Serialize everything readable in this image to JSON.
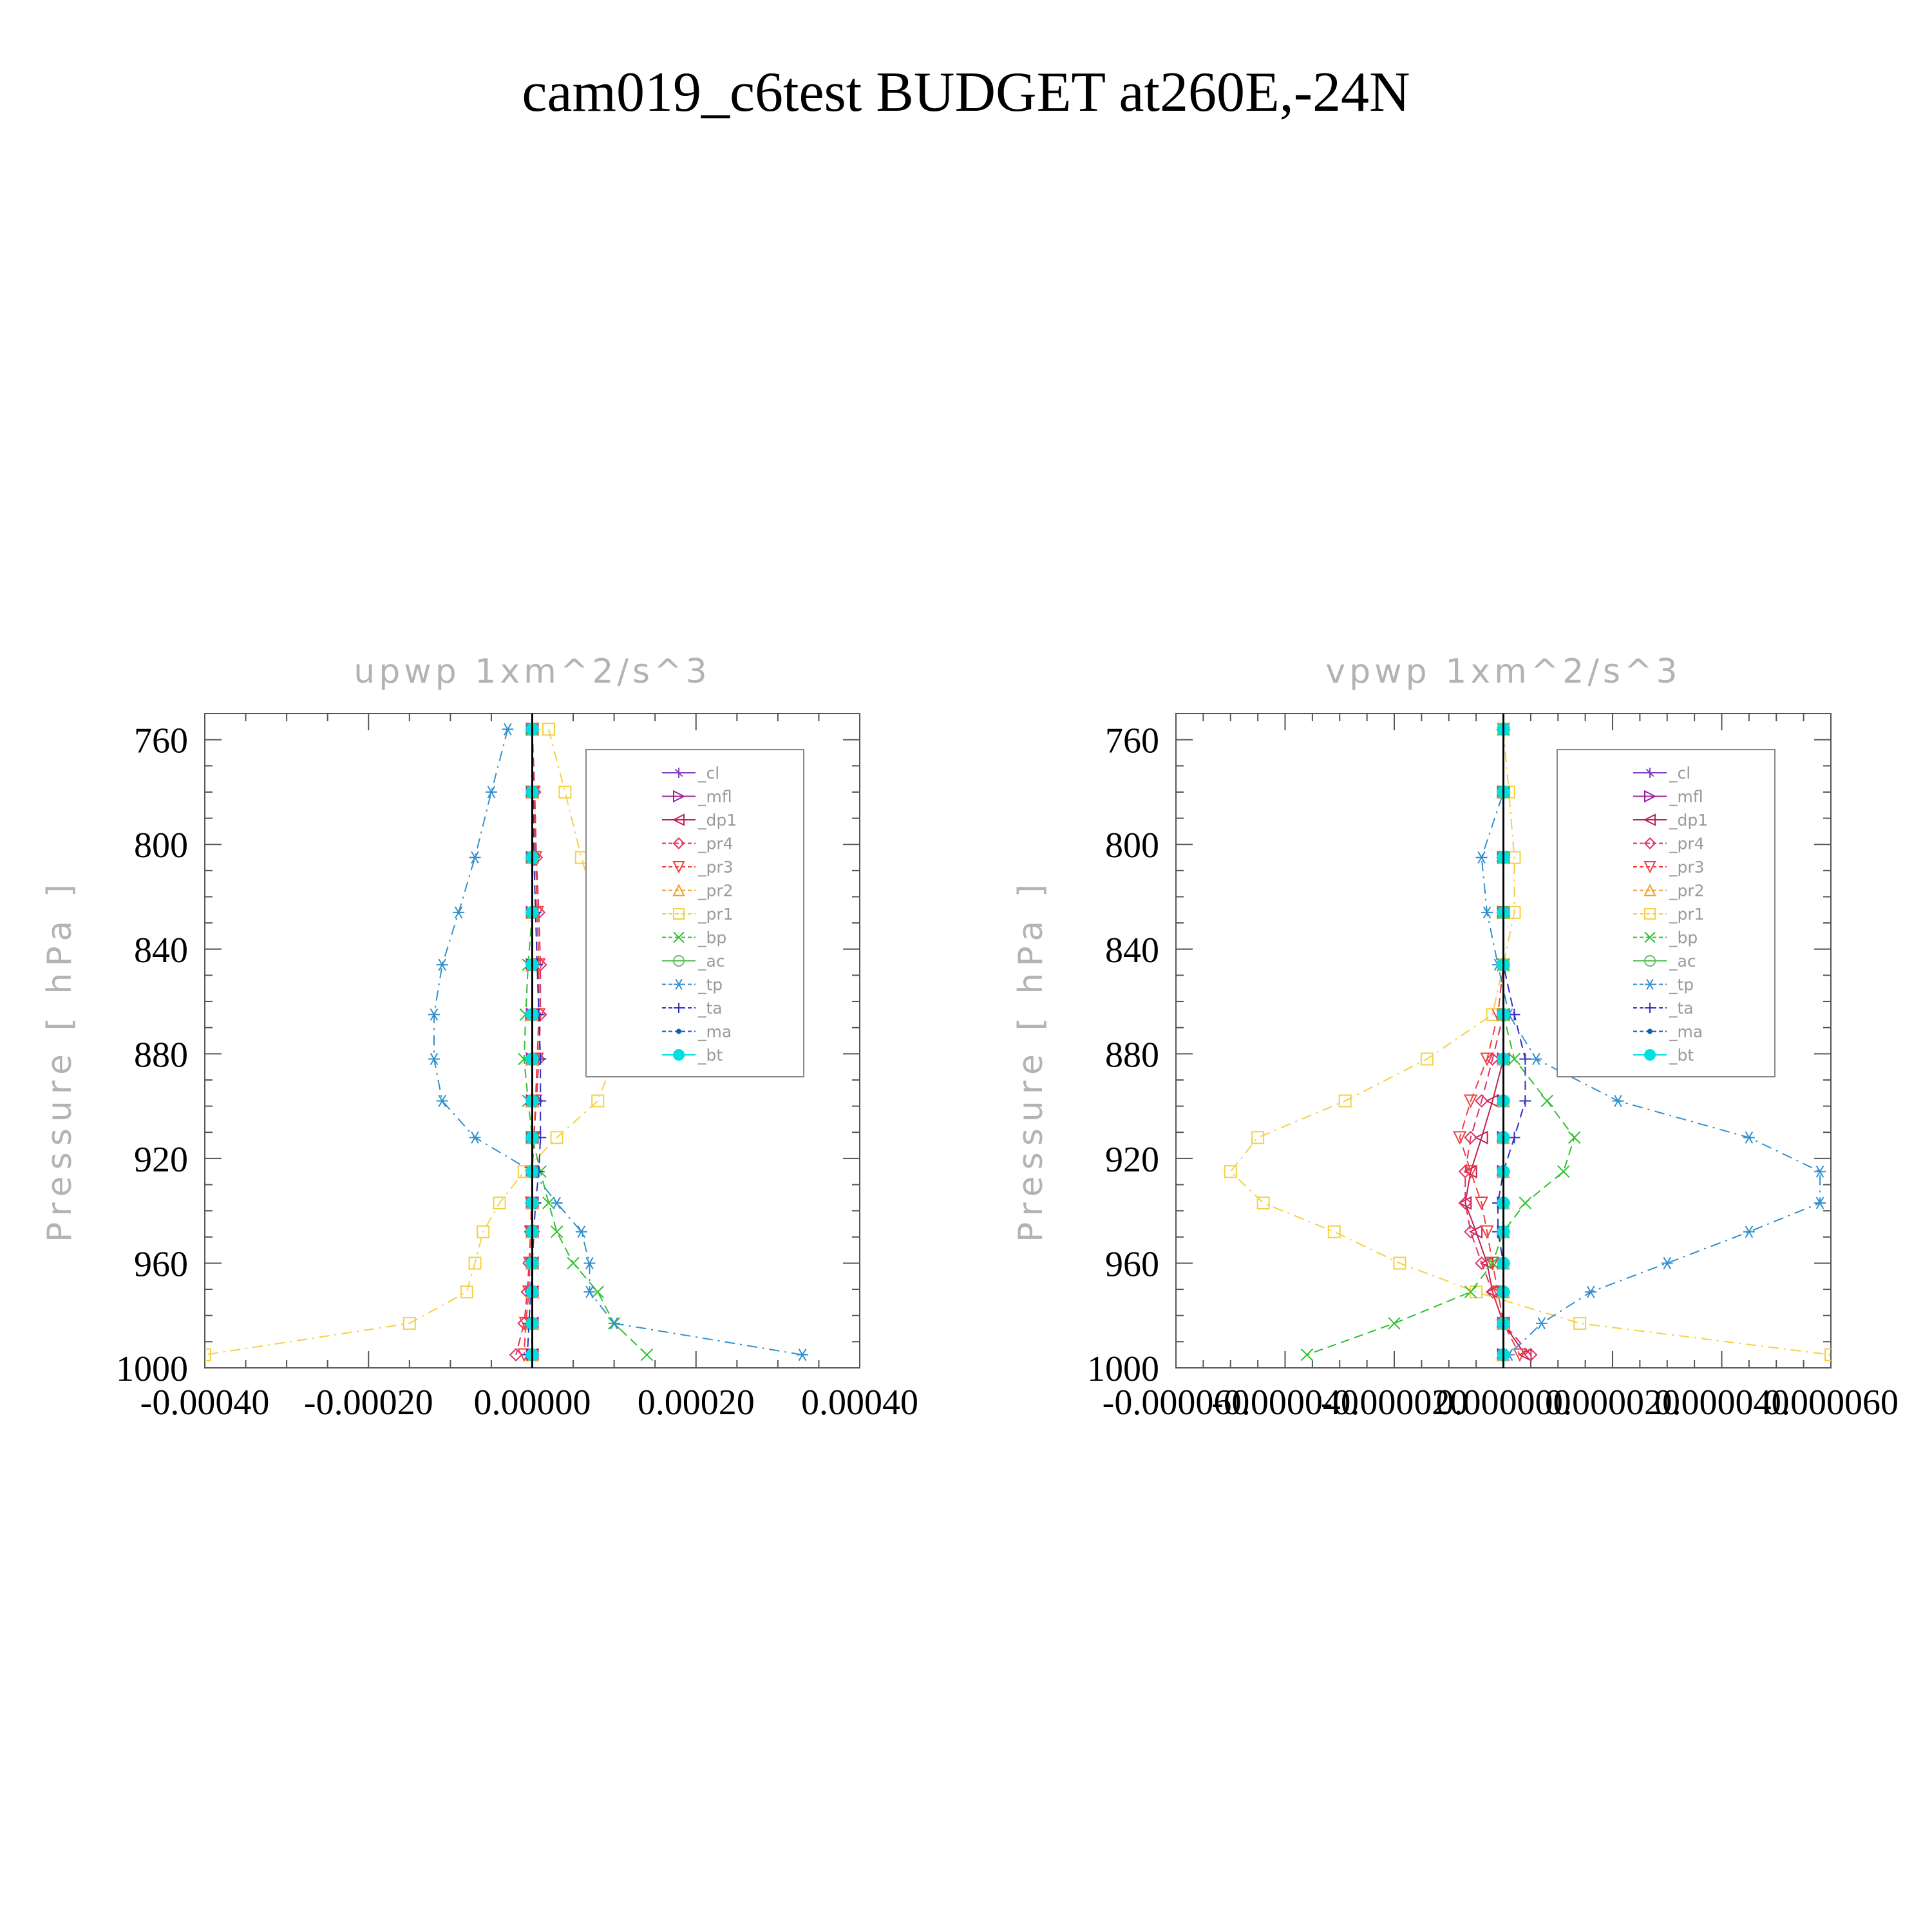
{
  "title": "cam019_c6test  BUDGET at260E,-24N",
  "chart_data": [
    {
      "type": "line",
      "title": "upwp    1xm^2/s^3",
      "ylabel": "Pressure  [ hPa ]",
      "xlabel": "",
      "xlim": [
        -0.0004,
        0.0004
      ],
      "ylim": [
        1000,
        750
      ],
      "x_ticks": [
        "-0.00040",
        "-0.00020",
        "0.00000",
        "0.00020",
        "0.00040"
      ],
      "x_tick_values": [
        -0.0004,
        -0.0002,
        0.0,
        0.0002,
        0.0004
      ],
      "y_ticks": [
        "760",
        "800",
        "840",
        "880",
        "920",
        "960",
        "1000"
      ],
      "y_tick_values": [
        760,
        800,
        840,
        880,
        920,
        960,
        1000
      ],
      "levels": [
        756,
        780,
        805,
        826,
        846,
        865,
        882,
        898,
        912,
        925,
        937,
        948,
        960,
        971,
        983,
        995
      ],
      "series": [
        {
          "name": "_cl",
          "color": "#8040c0",
          "marker": "star",
          "dash": "solid",
          "values": [
            0,
            0,
            0,
            0,
            0,
            0,
            0,
            0,
            0,
            0,
            0,
            0,
            0,
            0,
            0,
            0
          ]
        },
        {
          "name": "_mfl",
          "color": "#a020a0",
          "marker": "tri-right",
          "dash": "solid",
          "values": [
            0,
            0,
            0,
            0,
            0,
            0,
            0,
            0,
            0,
            0,
            0,
            0,
            0,
            0,
            0,
            0
          ]
        },
        {
          "name": "_dp1",
          "color": "#c02050",
          "marker": "tri-left",
          "dash": "solid",
          "values": [
            0,
            0,
            0,
            0,
            0,
            0,
            0,
            0,
            0,
            0,
            0,
            0,
            0,
            0,
            0,
            0
          ]
        },
        {
          "name": "_pr4",
          "color": "#e03060",
          "marker": "diamond",
          "dash": "dashed",
          "values": [
            0,
            3e-06,
            5e-06,
            8e-06,
            1e-05,
            1e-05,
            8e-06,
            5e-06,
            2e-06,
            0,
            -1e-06,
            -2e-06,
            -4e-06,
            -6e-06,
            -1e-05,
            -2e-05
          ]
        },
        {
          "name": "_pr3",
          "color": "#f04040",
          "marker": "tri-down",
          "dash": "dashed",
          "values": [
            0,
            2e-06,
            4e-06,
            6e-06,
            8e-06,
            8e-06,
            6e-06,
            4e-06,
            2e-06,
            0,
            -1e-06,
            -2e-06,
            -3e-06,
            -4e-06,
            -8e-06,
            -1e-05
          ]
        },
        {
          "name": "_pr2",
          "color": "#f0a030",
          "marker": "tri-up",
          "dash": "dashed",
          "values": [
            0,
            0,
            0,
            0,
            0,
            0,
            0,
            0,
            0,
            0,
            0,
            0,
            0,
            0,
            0,
            0
          ]
        },
        {
          "name": "_pr1",
          "color": "#f5d040",
          "marker": "square",
          "dash": "dashdot",
          "values": [
            2e-05,
            4e-05,
            6e-05,
            8e-05,
            9e-05,
            0.0001,
            0.0001,
            8e-05,
            3e-05,
            -1e-05,
            -4e-05,
            -6e-05,
            -7e-05,
            -8e-05,
            -0.00015,
            -0.0004
          ]
        },
        {
          "name": "_bp",
          "color": "#30c030",
          "marker": "x",
          "dash": "dashed",
          "values": [
            0,
            0,
            0,
            0,
            -5e-06,
            -8e-06,
            -1e-05,
            -5e-06,
            0,
            1e-05,
            2e-05,
            3e-05,
            5e-05,
            8e-05,
            0.0001,
            0.00014
          ]
        },
        {
          "name": "_ac",
          "color": "#60c060",
          "marker": "circle",
          "dash": "solid",
          "values": [
            0,
            0,
            0,
            0,
            0,
            0,
            0,
            0,
            0,
            0,
            0,
            0,
            0,
            0,
            0,
            0
          ]
        },
        {
          "name": "_tp",
          "color": "#3090d0",
          "marker": "asterisk",
          "dash": "dashdot",
          "values": [
            -3e-05,
            -5e-05,
            -7e-05,
            -9e-05,
            -0.00011,
            -0.00012,
            -0.00012,
            -0.00011,
            -7e-05,
            0,
            3e-05,
            6e-05,
            7e-05,
            7e-05,
            0.0001,
            0.00033
          ]
        },
        {
          "name": "_ta",
          "color": "#3030c0",
          "marker": "plus",
          "dash": "dashed",
          "values": [
            0,
            1e-06,
            2e-06,
            4e-06,
            6e-06,
            8e-06,
            1e-05,
            1e-05,
            1e-05,
            8e-06,
            4e-06,
            2e-06,
            0,
            -2e-06,
            -4e-06,
            -6e-06
          ]
        },
        {
          "name": "_ma",
          "color": "#1060b0",
          "marker": "dot",
          "dash": "dotted",
          "values": [
            0,
            0,
            0,
            0,
            0,
            0,
            0,
            0,
            0,
            0,
            0,
            0,
            0,
            0,
            0,
            0
          ]
        },
        {
          "name": "_bt",
          "color": "#00e0e0",
          "marker": "filled-circle",
          "dash": "solid",
          "values": [
            0,
            0,
            0,
            0,
            0,
            0,
            0,
            0,
            0,
            0,
            0,
            0,
            0,
            0,
            0,
            0
          ]
        }
      ]
    },
    {
      "type": "line",
      "title": "vpwp    1xm^2/s^3",
      "ylabel": "Pressure  [ hPa ]",
      "xlabel": "",
      "xlim": [
        -6e-05,
        6e-05
      ],
      "ylim": [
        1000,
        750
      ],
      "x_ticks": [
        "-0.000060",
        "-0.000040",
        "-0.000020",
        "0.000000",
        "0.000020",
        "0.000040",
        "0.000060"
      ],
      "x_tick_values": [
        -6e-05,
        -4e-05,
        -2e-05,
        0.0,
        2e-05,
        4e-05,
        6e-05
      ],
      "y_ticks": [
        "760",
        "800",
        "840",
        "880",
        "920",
        "960",
        "1000"
      ],
      "y_tick_values": [
        760,
        800,
        840,
        880,
        920,
        960,
        1000
      ],
      "levels": [
        756,
        780,
        805,
        826,
        846,
        865,
        882,
        898,
        912,
        925,
        937,
        948,
        960,
        971,
        983,
        995
      ],
      "series": [
        {
          "name": "_cl",
          "color": "#8040c0",
          "marker": "star",
          "dash": "solid",
          "values": [
            0,
            0,
            0,
            0,
            0,
            0,
            0,
            0,
            0,
            0,
            0,
            0,
            0,
            0,
            0,
            0
          ]
        },
        {
          "name": "_mfl",
          "color": "#a020a0",
          "marker": "tri-right",
          "dash": "solid",
          "values": [
            0,
            0,
            0,
            0,
            0,
            0,
            0,
            0,
            0,
            0,
            0,
            0,
            0,
            0,
            0,
            0
          ]
        },
        {
          "name": "_dp1",
          "color": "#c02050",
          "marker": "tri-left",
          "dash": "solid",
          "values": [
            0,
            0,
            0,
            0,
            0,
            0,
            0,
            -2e-06,
            -4e-06,
            -6e-06,
            -7e-06,
            -5e-06,
            -3e-06,
            -2e-06,
            0,
            4e-06
          ]
        },
        {
          "name": "_pr4",
          "color": "#e03060",
          "marker": "diamond",
          "dash": "dashed",
          "values": [
            0,
            0,
            0,
            0,
            0,
            0,
            -2e-06,
            -4e-06,
            -6e-06,
            -7e-06,
            -7e-06,
            -6e-06,
            -4e-06,
            -2e-06,
            0,
            5e-06
          ]
        },
        {
          "name": "_pr3",
          "color": "#f04040",
          "marker": "tri-down",
          "dash": "dashed",
          "values": [
            0,
            0,
            0,
            0,
            0,
            -1e-06,
            -3e-06,
            -6e-06,
            -8e-06,
            -6e-06,
            -4e-06,
            -3e-06,
            -2e-06,
            -1e-06,
            0,
            3e-06
          ]
        },
        {
          "name": "_pr2",
          "color": "#f0a030",
          "marker": "tri-up",
          "dash": "dashed",
          "values": [
            0,
            0,
            0,
            0,
            0,
            0,
            0,
            0,
            0,
            0,
            0,
            0,
            0,
            0,
            0,
            0
          ]
        },
        {
          "name": "_pr1",
          "color": "#f5d040",
          "marker": "square",
          "dash": "dashdot",
          "values": [
            0,
            1e-06,
            2e-06,
            2e-06,
            0,
            -2e-06,
            -1.4e-05,
            -2.9e-05,
            -4.5e-05,
            -5e-05,
            -4.4e-05,
            -3.1e-05,
            -1.9e-05,
            -5e-06,
            1.4e-05,
            6e-05
          ]
        },
        {
          "name": "_bp",
          "color": "#30c030",
          "marker": "x",
          "dash": "dashed",
          "values": [
            0,
            0,
            0,
            0,
            0,
            0,
            2e-06,
            8e-06,
            1.3e-05,
            1.1e-05,
            4e-06,
            0,
            -2e-06,
            -6e-06,
            -2e-05,
            -3.6e-05
          ]
        },
        {
          "name": "_ac",
          "color": "#60c060",
          "marker": "circle",
          "dash": "solid",
          "values": [
            0,
            0,
            0,
            0,
            0,
            0,
            0,
            0,
            0,
            0,
            0,
            0,
            0,
            0,
            0,
            0
          ]
        },
        {
          "name": "_tp",
          "color": "#3090d0",
          "marker": "asterisk",
          "dash": "dashdot",
          "values": [
            0,
            0,
            -4e-06,
            -3e-06,
            -1e-06,
            1e-06,
            6e-06,
            2.1e-05,
            4.5e-05,
            5.8e-05,
            5.8e-05,
            4.5e-05,
            3e-05,
            1.6e-05,
            7e-06,
            1e-06
          ]
        },
        {
          "name": "_ta",
          "color": "#3030c0",
          "marker": "plus",
          "dash": "dashed",
          "values": [
            0,
            0,
            0,
            0,
            0,
            2e-06,
            4e-06,
            4e-06,
            2e-06,
            0,
            -1e-06,
            -1e-06,
            0,
            0,
            0,
            0
          ]
        },
        {
          "name": "_ma",
          "color": "#1060b0",
          "marker": "dot",
          "dash": "dotted",
          "values": [
            0,
            0,
            0,
            0,
            0,
            0,
            0,
            0,
            0,
            0,
            0,
            0,
            0,
            0,
            0,
            0
          ]
        },
        {
          "name": "_bt",
          "color": "#00e0e0",
          "marker": "filled-circle",
          "dash": "solid",
          "values": [
            0,
            0,
            0,
            0,
            0,
            0,
            0,
            0,
            0,
            0,
            0,
            0,
            0,
            0,
            0,
            0
          ]
        }
      ]
    }
  ]
}
